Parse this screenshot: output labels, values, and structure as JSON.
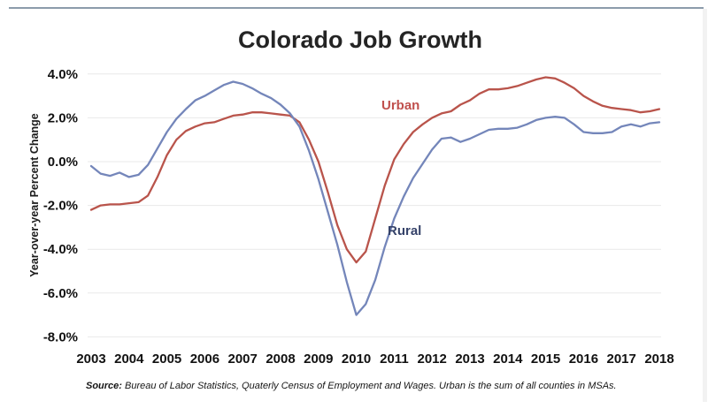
{
  "divider_color": "#8c9cab",
  "chart_data": {
    "type": "line",
    "title": "Colorado Job Growth",
    "ylabel": "Year-over-year Percent Change",
    "ylim": [
      -8.0,
      4.0
    ],
    "xlim": [
      2003,
      2018
    ],
    "grid": true,
    "legend_position": "inline-labels",
    "y_ticks": [
      {
        "label": "4.0%",
        "value": 4
      },
      {
        "label": "2.0%",
        "value": 2
      },
      {
        "label": "0.0%",
        "value": 0
      },
      {
        "label": "-2.0%",
        "value": -2
      },
      {
        "label": "-4.0%",
        "value": -4
      },
      {
        "label": "-6.0%",
        "value": -6
      },
      {
        "label": "-8.0%",
        "value": -8
      }
    ],
    "x_ticks": [
      "2003",
      "2004",
      "2005",
      "2006",
      "2007",
      "2008",
      "2009",
      "2010",
      "2011",
      "2012",
      "2013",
      "2014",
      "2015",
      "2016",
      "2017",
      "2018"
    ],
    "x_start": 2003,
    "x_step": 0.25,
    "series": [
      {
        "name": "Urban",
        "color": "#b9544b",
        "label_color": "#c0504d",
        "values": [
          -2.2,
          -2.0,
          -1.95,
          -1.95,
          -1.9,
          -1.85,
          -1.55,
          -0.7,
          0.3,
          1.0,
          1.4,
          1.6,
          1.75,
          1.8,
          1.95,
          2.1,
          2.15,
          2.25,
          2.25,
          2.2,
          2.15,
          2.1,
          1.8,
          1.0,
          0.0,
          -1.4,
          -2.9,
          -4.0,
          -4.6,
          -4.1,
          -2.6,
          -1.1,
          0.1,
          0.8,
          1.35,
          1.7,
          2.0,
          2.2,
          2.3,
          2.6,
          2.8,
          3.1,
          3.3,
          3.3,
          3.35,
          3.45,
          3.6,
          3.75,
          3.85,
          3.8,
          3.6,
          3.35,
          3.0,
          2.75,
          2.55,
          2.45,
          2.4,
          2.35,
          2.25,
          2.3,
          2.4
        ]
      },
      {
        "name": "Rural",
        "color": "#7486ba",
        "label_color": "#36436a",
        "values": [
          -0.2,
          -0.55,
          -0.65,
          -0.5,
          -0.7,
          -0.6,
          -0.15,
          0.6,
          1.35,
          1.95,
          2.4,
          2.8,
          3.0,
          3.25,
          3.5,
          3.65,
          3.55,
          3.35,
          3.1,
          2.9,
          2.6,
          2.2,
          1.6,
          0.5,
          -0.8,
          -2.3,
          -3.8,
          -5.5,
          -7.0,
          -6.5,
          -5.4,
          -3.9,
          -2.6,
          -1.6,
          -0.75,
          -0.1,
          0.55,
          1.05,
          1.1,
          0.9,
          1.05,
          1.25,
          1.45,
          1.5,
          1.5,
          1.55,
          1.7,
          1.9,
          2.0,
          2.05,
          2.0,
          1.7,
          1.35,
          1.3,
          1.3,
          1.35,
          1.6,
          1.7,
          1.6,
          1.75,
          1.8
        ]
      }
    ]
  },
  "source": {
    "label": "Source:",
    "text": " Bureau of Labor Statistics, Quaterly Census of Employment and Wages. Urban is the sum of all counties in MSAs."
  }
}
